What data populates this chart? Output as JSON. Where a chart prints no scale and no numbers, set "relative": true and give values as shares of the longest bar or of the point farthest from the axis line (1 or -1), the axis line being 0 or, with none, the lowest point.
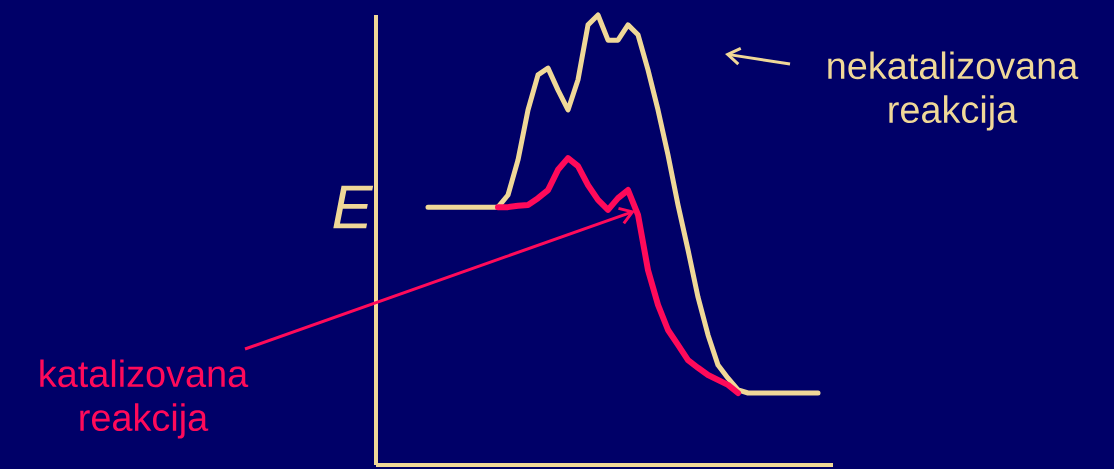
{
  "chart_data": {
    "type": "line",
    "relative": true,
    "ylabel": "E",
    "marker": "none",
    "line_style": "solid",
    "categories": [
      null,
      null,
      null,
      null,
      null,
      null,
      null,
      null,
      null,
      null,
      null,
      null,
      null,
      null,
      null,
      null,
      null,
      null,
      null,
      null,
      null,
      null,
      null,
      null,
      null,
      null,
      null,
      null,
      null,
      null,
      null,
      null,
      null,
      null,
      null,
      null,
      null,
      null,
      null,
      null
    ],
    "series": [
      {
        "name": "nekatalizovana reakcija",
        "color": "#f0d898",
        "values": [
          0.573,
          0.573,
          0.573,
          0.573,
          0.573,
          0.573,
          0.573,
          0.573,
          0.6,
          0.678,
          0.789,
          0.867,
          0.882,
          0.833,
          0.789,
          0.856,
          0.978,
          1.0,
          0.944,
          0.944,
          0.978,
          0.956,
          0.878,
          0.789,
          0.689,
          0.578,
          0.478,
          0.373,
          0.289,
          0.222,
          0.193,
          0.167,
          0.16,
          0.16,
          0.16,
          0.16,
          0.16,
          0.16,
          0.16,
          0.16
        ]
      },
      {
        "name": "katalizovana reakcija",
        "color": "#ff0a5a",
        "values": [
          null,
          null,
          null,
          null,
          null,
          null,
          null,
          0.573,
          0.573,
          0.576,
          0.578,
          0.593,
          0.611,
          0.656,
          0.682,
          0.664,
          0.622,
          0.589,
          0.567,
          0.593,
          0.611,
          0.556,
          0.433,
          0.356,
          0.3,
          0.267,
          0.233,
          0.216,
          0.2,
          0.189,
          0.178,
          0.16,
          null,
          null,
          null,
          null,
          null,
          null,
          null,
          null
        ]
      }
    ]
  }
}
